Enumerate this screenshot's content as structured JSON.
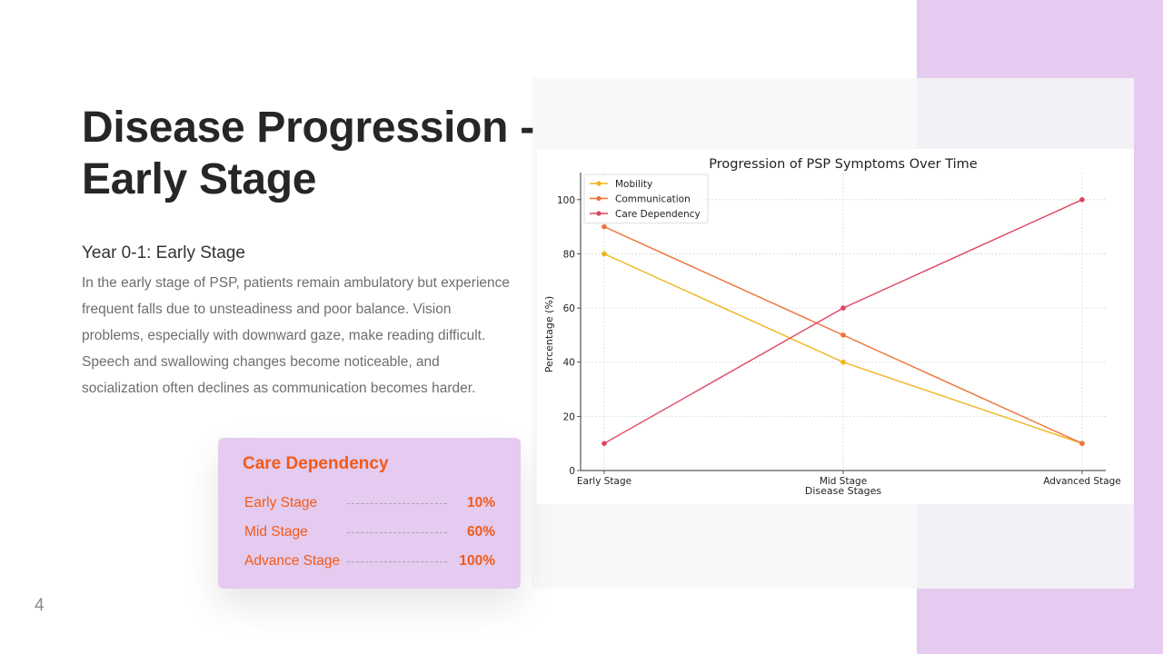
{
  "slide": {
    "title": "Disease Progression - Early Stage",
    "stage_heading": "Year 0-1: Early Stage",
    "body": "In the early stage of PSP, patients remain ambulatory but experience frequent falls due to unsteadiness and poor balance. Vision problems, especially with downward gaze, make reading difficult. Speech and swallowing changes become noticeable, and socialization often declines as communication becomes harder.",
    "page_number": "4"
  },
  "care_card": {
    "title": "Care Dependency",
    "rows": [
      {
        "label": "Early Stage",
        "value": "10%"
      },
      {
        "label": "Mid Stage",
        "value": "60%"
      },
      {
        "label": "Advance Stage",
        "value": "100%"
      }
    ]
  },
  "colors": {
    "accent_purple": "#e4cbef",
    "accent_orange": "#f25a18",
    "mobility": "#f0b418",
    "communication": "#ee7236",
    "care_dependency": "#e0445e"
  },
  "chart_data": {
    "type": "line",
    "title": "Progression of PSP Symptoms Over Time",
    "xlabel": "Disease Stages",
    "ylabel": "Percentage (%)",
    "categories": [
      "Early Stage",
      "Mid Stage",
      "Advanced Stage"
    ],
    "series": [
      {
        "name": "Mobility",
        "values": [
          80,
          40,
          10
        ],
        "color": "#f0b418"
      },
      {
        "name": "Communication",
        "values": [
          90,
          50,
          10
        ],
        "color": "#ee7236"
      },
      {
        "name": "Care Dependency",
        "values": [
          10,
          60,
          100
        ],
        "color": "#e0445e"
      }
    ],
    "ylim": [
      0,
      110
    ],
    "yticks": [
      0,
      20,
      40,
      60,
      80,
      100
    ],
    "grid": true,
    "legend": "top-left"
  }
}
